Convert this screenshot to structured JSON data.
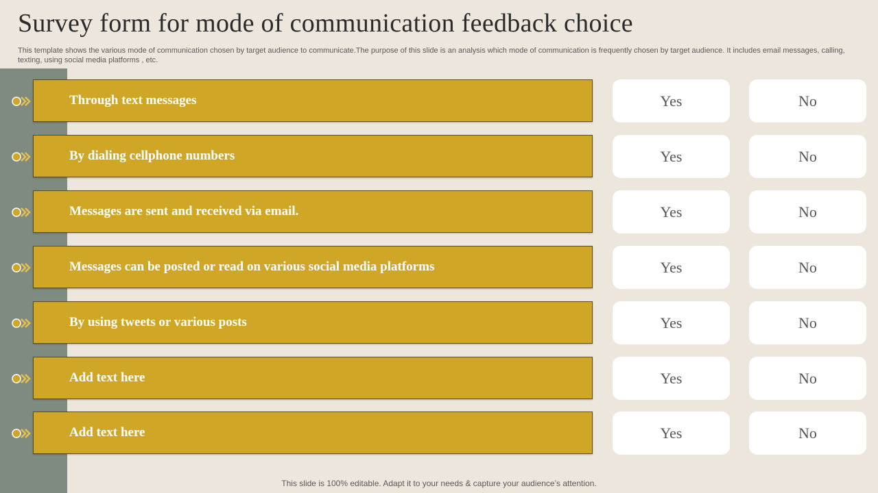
{
  "title": "Survey form for mode of communication feedback choice",
  "description": "This template shows the various mode of communication chosen by target audience to communicate.The purpose of this slide is an analysis which mode of communication is frequently chosen by target audience. It includes email messages, calling, texting, using social media platforms , etc.",
  "colors": {
    "background": "#ede6dd",
    "side_band": "#7f8b81",
    "bar": "#cfa625",
    "bullet": "#cfa625",
    "option_bg": "#ffffff"
  },
  "bullet_icon": "circle-chevrons-icon",
  "rows": [
    {
      "label": "Through text messages",
      "yes": "Yes",
      "no": "No"
    },
    {
      "label": "By dialing cellphone numbers",
      "yes": "Yes",
      "no": "No"
    },
    {
      "label": "Messages are sent and received via email.",
      "yes": "Yes",
      "no": "No"
    },
    {
      "label": "Messages can be posted or read on various social media platforms",
      "yes": "Yes",
      "no": "No"
    },
    {
      "label": "By using tweets or various posts",
      "yes": "Yes",
      "no": "No"
    },
    {
      "label": "Add text here",
      "yes": "Yes",
      "no": "No"
    },
    {
      "label": "Add text here",
      "yes": "Yes",
      "no": "No"
    }
  ],
  "footer": "This slide is 100% editable. Adapt it to your needs & capture your audience’s attention."
}
